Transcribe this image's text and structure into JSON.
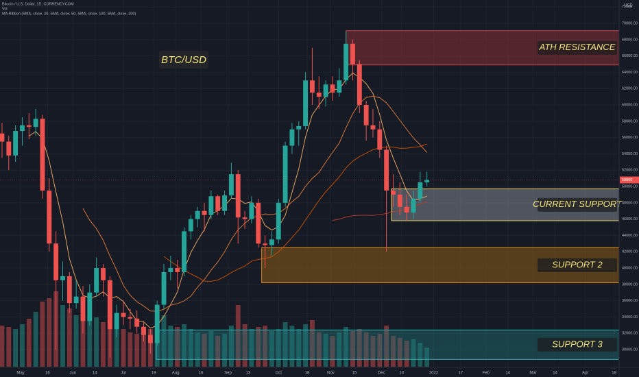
{
  "chart_data": {
    "type": "candlestick",
    "title": "BTC/USD",
    "legend_lines": [
      "Bitcoin / U.S. Dollar, 1D, CURRENCYCOM",
      "Vol",
      "MA Ribbon (SMA, close, 20, SMA, close, 50, SMA, close, 100, SMA, close, 200)"
    ],
    "y_axis_label": "USD",
    "x": [
      -11,
      -7,
      -3,
      1,
      5,
      9,
      13,
      17,
      21,
      25,
      29,
      33,
      37,
      41,
      45,
      49,
      53,
      57,
      61,
      65,
      69,
      73,
      77,
      81,
      85,
      89,
      93,
      97,
      101,
      105,
      109,
      113,
      117,
      121,
      125,
      129,
      133,
      137,
      141,
      145,
      149,
      153,
      157,
      161,
      165,
      169,
      173,
      177,
      181,
      185,
      189,
      193,
      197,
      201,
      205,
      209,
      213,
      217,
      221,
      225,
      229,
      233,
      237,
      241
    ],
    "open": [
      56500,
      55500,
      53800,
      56800,
      57500,
      57300,
      58300,
      49500,
      43000,
      38500,
      39000,
      35700,
      36500,
      33500,
      37000,
      40000,
      38500,
      32500,
      34500,
      34000,
      33800,
      32800,
      31800,
      30800,
      35500,
      39500,
      40000,
      39500,
      44500,
      46000,
      47000,
      46500,
      48800,
      47000,
      48900,
      51500,
      46200,
      46000,
      48000,
      43000,
      42800,
      43500,
      48000,
      55000,
      57000,
      57400,
      63000,
      61500,
      61000,
      62500,
      61500,
      63000,
      67500,
      65000,
      60000,
      57500,
      57000,
      54500,
      49500,
      49000,
      47500,
      46800,
      48500,
      50500
    ],
    "high": [
      57800,
      56200,
      57500,
      58500,
      59000,
      59500,
      58800,
      51000,
      44500,
      40800,
      39500,
      38500,
      37800,
      38000,
      41300,
      40500,
      39000,
      35500,
      36000,
      35000,
      34800,
      33500,
      32500,
      36000,
      40500,
      41500,
      41000,
      45000,
      46500,
      47500,
      48000,
      49500,
      49000,
      49500,
      52900,
      52000,
      47000,
      48800,
      48500,
      44000,
      44500,
      48500,
      55500,
      57800,
      58000,
      64000,
      67000,
      63500,
      63000,
      63500,
      64500,
      69000,
      68000,
      65500,
      60500,
      59500,
      58000,
      55000,
      51500,
      50500,
      49000,
      49500,
      51800,
      51800
    ],
    "low": [
      53500,
      52000,
      53000,
      55000,
      55800,
      56200,
      48500,
      42000,
      30000,
      36000,
      34500,
      35000,
      32000,
      33000,
      36500,
      36500,
      29000,
      31500,
      33000,
      32500,
      32000,
      31000,
      29500,
      30500,
      35000,
      38500,
      37500,
      39000,
      43500,
      45000,
      44500,
      46000,
      46500,
      46500,
      48500,
      43000,
      44800,
      45500,
      42500,
      40000,
      41500,
      43000,
      47500,
      54000,
      55000,
      57000,
      60000,
      59500,
      59800,
      60500,
      61000,
      62500,
      63000,
      59000,
      55600,
      56000,
      53500,
      42000,
      47500,
      46500,
      45800,
      46000,
      48000,
      50000
    ],
    "close": [
      55500,
      53800,
      56800,
      57500,
      57300,
      58300,
      49500,
      43000,
      38500,
      39000,
      35700,
      36500,
      33500,
      37000,
      40000,
      38500,
      32500,
      34500,
      34000,
      33800,
      32800,
      31800,
      30800,
      35500,
      39500,
      40000,
      39500,
      44500,
      46000,
      47000,
      46500,
      48800,
      47000,
      48900,
      51500,
      46200,
      46000,
      48000,
      43000,
      42800,
      43500,
      48000,
      55000,
      57000,
      57400,
      63000,
      61500,
      61000,
      62500,
      61500,
      63000,
      67500,
      65000,
      60000,
      57500,
      57000,
      54500,
      49500,
      49000,
      47500,
      46800,
      48500,
      50500,
      50800
    ],
    "volume": [
      60,
      58,
      55,
      62,
      70,
      80,
      95,
      100,
      110,
      90,
      85,
      75,
      70,
      68,
      72,
      65,
      85,
      62,
      55,
      50,
      48,
      50,
      55,
      65,
      75,
      60,
      58,
      62,
      55,
      50,
      48,
      52,
      45,
      48,
      60,
      90,
      62,
      55,
      58,
      60,
      52,
      55,
      65,
      60,
      55,
      62,
      68,
      50,
      48,
      45,
      50,
      58,
      52,
      55,
      50,
      45,
      48,
      60,
      45,
      42,
      38,
      40,
      35,
      28
    ],
    "up_color": "#26a69a",
    "down_color": "#ef5350",
    "ma_ribbon": {
      "periods": [
        20,
        50,
        100,
        200
      ],
      "colors": [
        "#f7b267",
        "#e8803a",
        "#d35400",
        "#c0392b"
      ]
    },
    "zones": [
      {
        "name": "ATH RESISTANCE",
        "low": 64900,
        "high": 69100,
        "start": 193,
        "fill": "rgba(160,50,55,0.45)",
        "stroke": "#c0444a"
      },
      {
        "name": "CURRENT SUPPORT",
        "low": 45800,
        "high": 49700,
        "start": 220,
        "fill": "rgba(150,155,165,0.45)",
        "stroke": "#e6d36a"
      },
      {
        "name": "SUPPORT 2",
        "low": 38200,
        "high": 42500,
        "start": 143,
        "fill": "rgba(150,95,20,0.5)",
        "stroke": "#e38b1c"
      },
      {
        "name": "SUPPORT 3",
        "low": 28800,
        "high": 32400,
        "start": 80.5,
        "fill": "rgba(30,110,115,0.45)",
        "stroke": "#2bb3b3"
      }
    ],
    "xlim": [
      -12.2,
      355
    ],
    "xticks": [
      {
        "value": 0,
        "label": "May"
      },
      16,
      {
        "value": 31,
        "label": "Jun"
      },
      {
        "value": 44,
        "label": "14"
      },
      {
        "value": 61,
        "label": "Jul"
      },
      {
        "value": 79,
        "label": "19"
      },
      {
        "value": 92,
        "label": "Aug"
      },
      {
        "value": 107,
        "label": "16"
      },
      {
        "value": 123,
        "label": "Sep"
      },
      {
        "value": 135,
        "label": "13"
      },
      {
        "value": 153,
        "label": "Oct"
      },
      {
        "value": 170,
        "label": "18"
      },
      {
        "value": 184,
        "label": "Nov"
      },
      {
        "value": 198,
        "label": "15"
      },
      {
        "value": 214,
        "label": "Dec"
      },
      {
        "value": 226,
        "label": "13"
      },
      {
        "value": 245,
        "label": "2022"
      },
      {
        "value": 261,
        "label": "17"
      },
      {
        "value": 276,
        "label": "Feb"
      },
      {
        "value": 289,
        "label": "14"
      },
      {
        "value": 304,
        "label": "Mar"
      },
      {
        "value": 317,
        "label": "14"
      },
      {
        "value": 335,
        "label": "Apr"
      },
      {
        "value": 352,
        "label": "18"
      }
    ],
    "ylim": [
      27900,
      72860
    ],
    "yticks": [
      {
        "value": 30000,
        "label": "30000.00"
      },
      {
        "value": 32000,
        "label": "32000.00"
      },
      {
        "value": 34000,
        "label": "34000.00"
      },
      {
        "value": 36000,
        "label": "36000.00"
      },
      {
        "value": 38000,
        "label": "38000.00"
      },
      {
        "value": 40000,
        "label": "40000.00"
      },
      {
        "value": 42000,
        "label": "42000.00"
      },
      {
        "value": 44000,
        "label": "44000.00"
      },
      {
        "value": 46000,
        "label": "46000.00"
      },
      {
        "value": 48000,
        "label": "48000.00"
      },
      {
        "value": 50000,
        "label": "50000.00"
      },
      {
        "value": 52000,
        "label": "52000.00"
      },
      {
        "value": 54000,
        "label": "54000.00"
      },
      {
        "value": 56000,
        "label": "56000.00"
      },
      {
        "value": 58000,
        "label": "58000.00"
      },
      {
        "value": 60000,
        "label": "60000.00"
      },
      {
        "value": 62000,
        "label": "62000.00"
      },
      {
        "value": 64000,
        "label": "64000.00"
      },
      {
        "value": 66000,
        "label": "66000.00"
      },
      {
        "value": 68000,
        "label": "68000.00"
      },
      {
        "value": 70000,
        "label": "70000.00"
      },
      72000
    ],
    "grid": true
  }
}
